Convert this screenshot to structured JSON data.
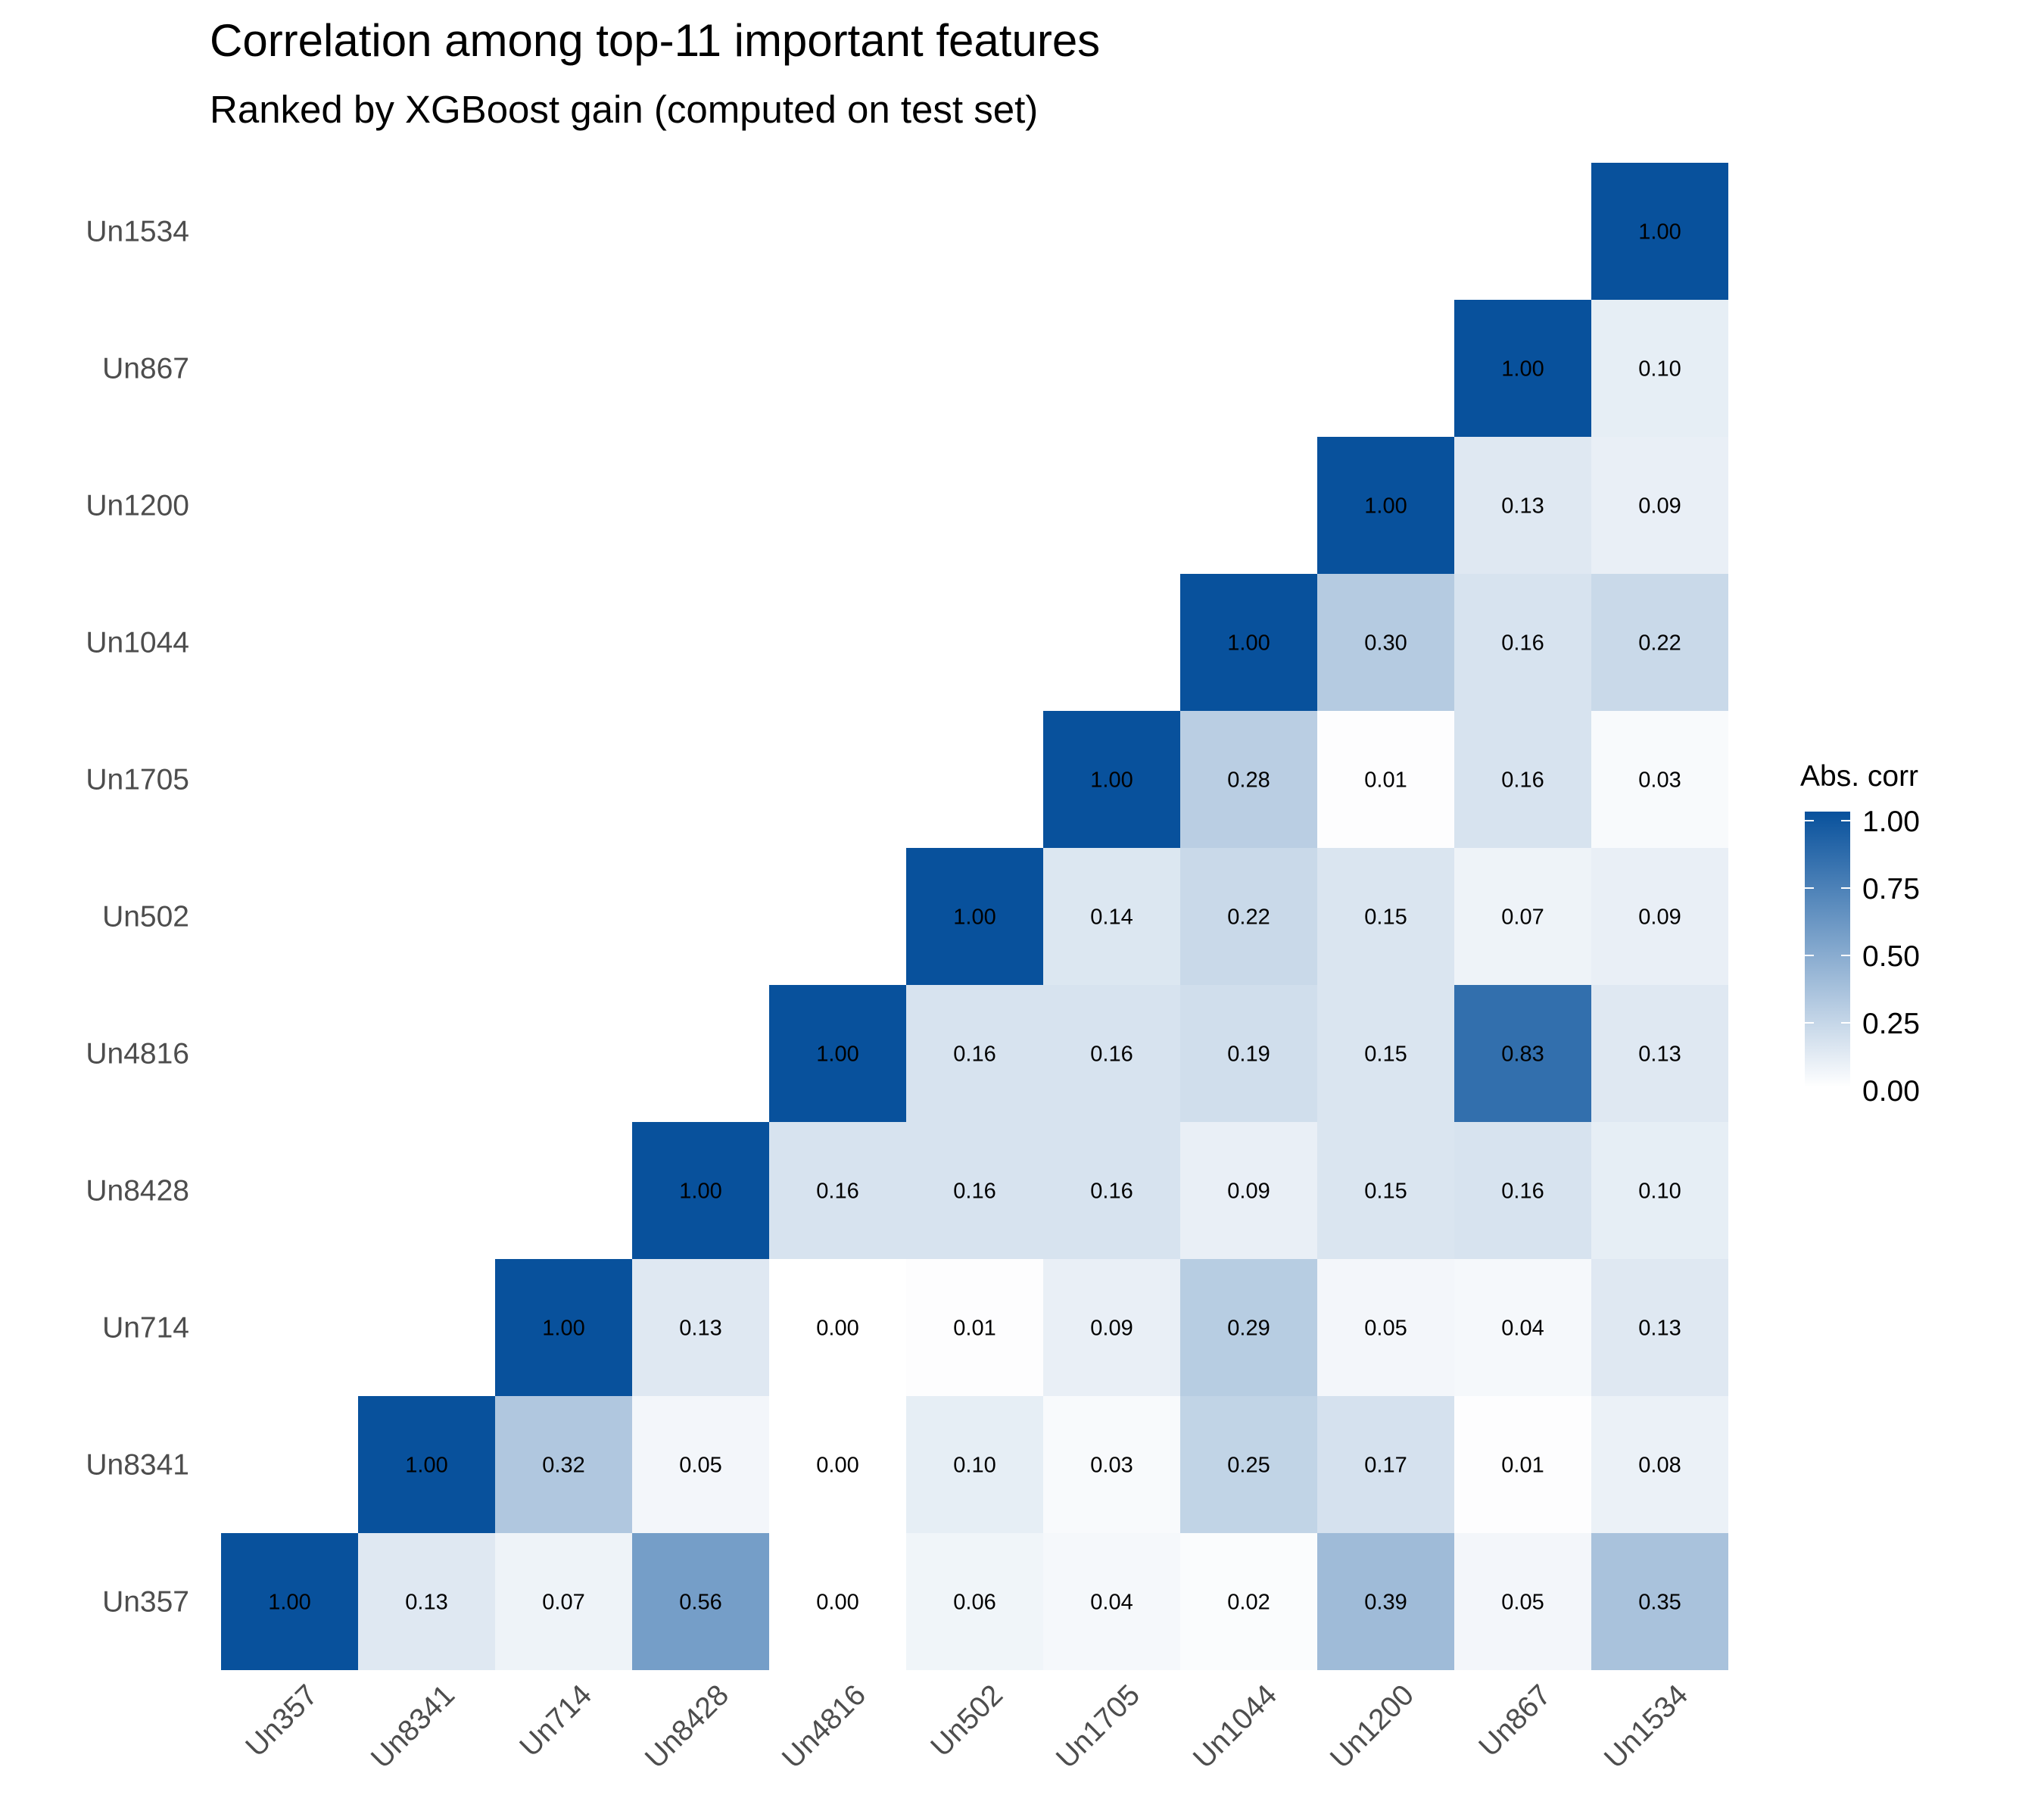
{
  "chart_data": {
    "type": "heatmap",
    "title": "Correlation among top-11 important features",
    "subtitle": "Ranked by XGBoost gain (computed on test set)",
    "xlabel": "",
    "ylabel": "",
    "features": [
      "Un357",
      "Un8341",
      "Un714",
      "Un8428",
      "Un4816",
      "Un502",
      "Un1705",
      "Un1044",
      "Un1200",
      "Un867",
      "Un1534"
    ],
    "matrix": [
      [
        1.0,
        0.13,
        0.07,
        0.56,
        0.0,
        0.06,
        0.04,
        0.02,
        0.39,
        0.05,
        0.35
      ],
      [
        null,
        1.0,
        0.32,
        0.05,
        0.0,
        0.1,
        0.03,
        0.25,
        0.17,
        0.01,
        0.08
      ],
      [
        null,
        null,
        1.0,
        0.13,
        0.0,
        0.01,
        0.09,
        0.29,
        0.05,
        0.04,
        0.13
      ],
      [
        null,
        null,
        null,
        1.0,
        0.16,
        0.16,
        0.16,
        0.09,
        0.15,
        0.16,
        0.1
      ],
      [
        null,
        null,
        null,
        null,
        1.0,
        0.16,
        0.16,
        0.19,
        0.15,
        0.83,
        0.13
      ],
      [
        null,
        null,
        null,
        null,
        null,
        1.0,
        0.14,
        0.22,
        0.15,
        0.07,
        0.09
      ],
      [
        null,
        null,
        null,
        null,
        null,
        null,
        1.0,
        0.28,
        0.01,
        0.16,
        0.03
      ],
      [
        null,
        null,
        null,
        null,
        null,
        null,
        null,
        1.0,
        0.3,
        0.16,
        0.22
      ],
      [
        null,
        null,
        null,
        null,
        null,
        null,
        null,
        null,
        1.0,
        0.13,
        0.09
      ],
      [
        null,
        null,
        null,
        null,
        null,
        null,
        null,
        null,
        null,
        1.0,
        0.1
      ],
      [
        null,
        null,
        null,
        null,
        null,
        null,
        null,
        null,
        null,
        null,
        1.0
      ]
    ],
    "legend": {
      "title": "Abs. corr",
      "ticks": [
        "1.00",
        "0.75",
        "0.50",
        "0.25",
        "0.00"
      ],
      "range": [
        0,
        1
      ],
      "low_color": "#ffffff",
      "high_color": "#08519c",
      "position": "right"
    },
    "grid": false
  }
}
